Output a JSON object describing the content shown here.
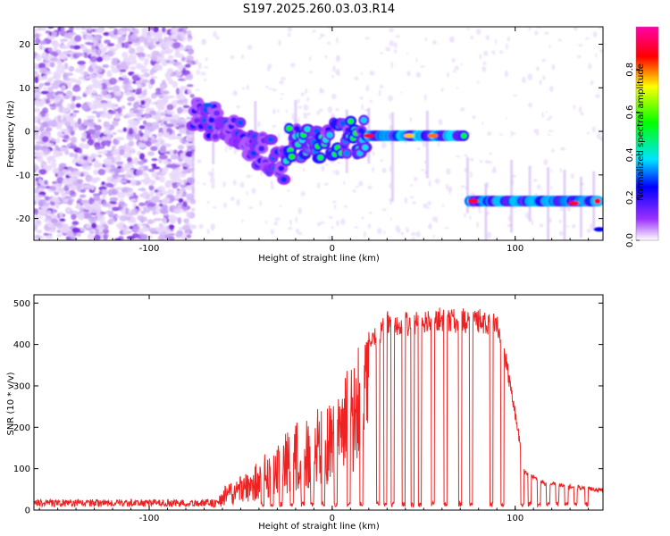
{
  "title": "S197.2025.260.03.03.R14",
  "colors": {
    "snr_line": "#ee2222",
    "axis": "#000000",
    "noise": "#7a22e0"
  },
  "chart_data": [
    {
      "type": "heatmap",
      "xlabel": "Height of straight line (km)",
      "ylabel": "Frequency (Hz)",
      "xlim": [
        -163,
        148
      ],
      "ylim": [
        -25,
        24
      ],
      "xticks": [
        -100,
        0,
        100
      ],
      "xtick_labels": [
        "-100",
        "0",
        "100"
      ],
      "yticks": [
        20,
        10,
        0,
        -10,
        -20
      ],
      "ytick_labels": [
        "20",
        "10",
        "0",
        "-10",
        "-20"
      ],
      "colorbar": {
        "label": "Normalized spectral amplitude",
        "range": [
          0.0,
          1.0
        ],
        "ticks": [
          0.0,
          0.2,
          0.4,
          0.6,
          0.8
        ],
        "tick_labels": [
          "0.0",
          "0.2",
          "0.4",
          "0.6",
          "0.8"
        ],
        "stops": [
          "#ffffff",
          "#9b30ff",
          "#0000ff",
          "#00e5ff",
          "#00ff00",
          "#ffff00",
          "#ff0000",
          "#ff00aa"
        ]
      },
      "segments": [
        {
          "x_start": -76,
          "x_end": -25,
          "freq_start": 5,
          "freq_end": -8,
          "peak_amplitude": 0.3
        },
        {
          "x_start": -25,
          "x_end": 18,
          "freq_start": -3,
          "freq_end": -1,
          "peak_amplitude": 0.55
        },
        {
          "x_start": 18,
          "x_end": 72,
          "freq": -1,
          "peak_amplitude": 0.95
        },
        {
          "x_start": 75,
          "x_end": 145,
          "freq": -16,
          "peak_amplitude": 0.9
        }
      ]
    },
    {
      "type": "line",
      "xlabel": "Height of straight line (km)",
      "ylabel": "SNR (10 * v/v)",
      "xlim": [
        -163,
        148
      ],
      "ylim": [
        0,
        520
      ],
      "xticks": [
        -100,
        0,
        100
      ],
      "xtick_labels": [
        "-100",
        "0",
        "100"
      ],
      "yticks": [
        0,
        100,
        200,
        300,
        400,
        500
      ],
      "ytick_labels": [
        "0",
        "100",
        "200",
        "300",
        "400",
        "500"
      ],
      "series": [
        {
          "name": "SNR",
          "envelope_x": [
            -163,
            -100,
            -65,
            -60,
            -50,
            -40,
            -30,
            -20,
            -10,
            0,
            5,
            10,
            15,
            20,
            25,
            30,
            40,
            60,
            90,
            95,
            100,
            105,
            115,
            130,
            148
          ],
          "envelope_y": [
            15,
            15,
            18,
            60,
            80,
            120,
            170,
            210,
            240,
            280,
            320,
            360,
            400,
            430,
            440,
            480,
            480,
            490,
            480,
            380,
            250,
            100,
            70,
            60,
            50
          ],
          "dropouts_x": [
            -38,
            -33,
            -28,
            -22,
            -16,
            -11,
            -5,
            2,
            9,
            16,
            25,
            29,
            33,
            39,
            44,
            48,
            55,
            62,
            70,
            76,
            87,
            93,
            104,
            108,
            113,
            118,
            123,
            128,
            133,
            139
          ]
        }
      ]
    }
  ]
}
